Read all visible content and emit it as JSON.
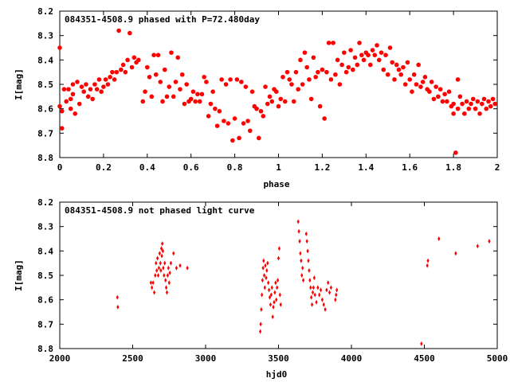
{
  "chart_data": [
    {
      "type": "scatter",
      "title": "084351-4508.9 phased with P=72.480day",
      "xlabel": "phase",
      "ylabel": "I[mag]",
      "xlim": [
        0,
        2
      ],
      "ylim": [
        8.8,
        8.2
      ],
      "y_inverted": true,
      "grid": false,
      "legend": "none",
      "x_ticks": [
        "0",
        "0.2",
        "0.4",
        "0.6",
        "0.8",
        "1",
        "1.2",
        "1.4",
        "1.6",
        "1.8",
        "2"
      ],
      "y_ticks": [
        "8.2",
        "8.3",
        "8.4",
        "8.5",
        "8.6",
        "8.7",
        "8.8"
      ],
      "marker": "filled-circle",
      "color": "#ff0000",
      "points": [
        [
          0.0,
          8.35
        ],
        [
          0.0,
          8.59
        ],
        [
          0.01,
          8.68
        ],
        [
          0.01,
          8.61
        ],
        [
          0.02,
          8.52
        ],
        [
          0.03,
          8.57
        ],
        [
          0.04,
          8.52
        ],
        [
          0.05,
          8.56
        ],
        [
          0.05,
          8.6
        ],
        [
          0.06,
          8.5
        ],
        [
          0.06,
          8.54
        ],
        [
          0.07,
          8.62
        ],
        [
          0.08,
          8.49
        ],
        [
          0.09,
          8.58
        ],
        [
          0.1,
          8.51
        ],
        [
          0.11,
          8.53
        ],
        [
          0.12,
          8.5
        ],
        [
          0.13,
          8.55
        ],
        [
          0.14,
          8.52
        ],
        [
          0.15,
          8.56
        ],
        [
          0.16,
          8.5
        ],
        [
          0.17,
          8.52
        ],
        [
          0.18,
          8.48
        ],
        [
          0.19,
          8.53
        ],
        [
          0.2,
          8.51
        ],
        [
          0.21,
          8.48
        ],
        [
          0.22,
          8.5
        ],
        [
          0.23,
          8.47
        ],
        [
          0.24,
          8.45
        ],
        [
          0.25,
          8.48
        ],
        [
          0.26,
          8.45
        ],
        [
          0.27,
          8.28
        ],
        [
          0.28,
          8.44
        ],
        [
          0.29,
          8.42
        ],
        [
          0.3,
          8.45
        ],
        [
          0.31,
          8.4
        ],
        [
          0.32,
          8.29
        ],
        [
          0.33,
          8.43
        ],
        [
          0.34,
          8.39
        ],
        [
          0.35,
          8.41
        ],
        [
          0.36,
          8.4
        ],
        [
          0.38,
          8.57
        ],
        [
          0.39,
          8.53
        ],
        [
          0.4,
          8.43
        ],
        [
          0.41,
          8.47
        ],
        [
          0.42,
          8.55
        ],
        [
          0.43,
          8.38
        ],
        [
          0.44,
          8.46
        ],
        [
          0.45,
          8.38
        ],
        [
          0.46,
          8.49
        ],
        [
          0.47,
          8.57
        ],
        [
          0.48,
          8.44
        ],
        [
          0.49,
          8.55
        ],
        [
          0.5,
          8.51
        ],
        [
          0.51,
          8.37
        ],
        [
          0.52,
          8.55
        ],
        [
          0.53,
          8.49
        ],
        [
          0.54,
          8.39
        ],
        [
          0.55,
          8.52
        ],
        [
          0.56,
          8.46
        ],
        [
          0.57,
          8.58
        ],
        [
          0.58,
          8.5
        ],
        [
          0.59,
          8.57
        ],
        [
          0.6,
          8.56
        ],
        [
          0.61,
          8.53
        ],
        [
          0.62,
          8.57
        ],
        [
          0.63,
          8.54
        ],
        [
          0.64,
          8.57
        ],
        [
          0.65,
          8.54
        ],
        [
          0.66,
          8.47
        ],
        [
          0.67,
          8.49
        ],
        [
          0.68,
          8.63
        ],
        [
          0.69,
          8.58
        ],
        [
          0.7,
          8.53
        ],
        [
          0.71,
          8.6
        ],
        [
          0.72,
          8.67
        ],
        [
          0.73,
          8.61
        ],
        [
          0.74,
          8.48
        ],
        [
          0.75,
          8.65
        ],
        [
          0.76,
          8.5
        ],
        [
          0.77,
          8.66
        ],
        [
          0.78,
          8.48
        ],
        [
          0.79,
          8.73
        ],
        [
          0.8,
          8.64
        ],
        [
          0.81,
          8.48
        ],
        [
          0.82,
          8.72
        ],
        [
          0.83,
          8.49
        ],
        [
          0.84,
          8.66
        ],
        [
          0.85,
          8.51
        ],
        [
          0.86,
          8.65
        ],
        [
          0.87,
          8.69
        ],
        [
          0.88,
          8.53
        ],
        [
          0.89,
          8.59
        ],
        [
          0.9,
          8.6
        ],
        [
          0.91,
          8.72
        ],
        [
          0.92,
          8.61
        ],
        [
          0.93,
          8.63
        ],
        [
          0.94,
          8.51
        ],
        [
          0.95,
          8.58
        ],
        [
          0.96,
          8.55
        ],
        [
          0.97,
          8.57
        ],
        [
          0.98,
          8.52
        ],
        [
          0.99,
          8.53
        ],
        [
          1.0,
          8.59
        ],
        [
          1.01,
          8.56
        ],
        [
          1.02,
          8.47
        ],
        [
          1.03,
          8.57
        ],
        [
          1.04,
          8.45
        ],
        [
          1.05,
          8.48
        ],
        [
          1.06,
          8.5
        ],
        [
          1.07,
          8.57
        ],
        [
          1.08,
          8.45
        ],
        [
          1.09,
          8.52
        ],
        [
          1.1,
          8.4
        ],
        [
          1.11,
          8.5
        ],
        [
          1.12,
          8.37
        ],
        [
          1.13,
          8.43
        ],
        [
          1.14,
          8.48
        ],
        [
          1.15,
          8.56
        ],
        [
          1.16,
          8.39
        ],
        [
          1.17,
          8.47
        ],
        [
          1.18,
          8.45
        ],
        [
          1.19,
          8.59
        ],
        [
          1.2,
          8.44
        ],
        [
          1.21,
          8.64
        ],
        [
          1.22,
          8.45
        ],
        [
          1.23,
          8.33
        ],
        [
          1.24,
          8.48
        ],
        [
          1.25,
          8.33
        ],
        [
          1.26,
          8.46
        ],
        [
          1.27,
          8.4
        ],
        [
          1.28,
          8.5
        ],
        [
          1.29,
          8.42
        ],
        [
          1.3,
          8.37
        ],
        [
          1.31,
          8.45
        ],
        [
          1.32,
          8.43
        ],
        [
          1.33,
          8.36
        ],
        [
          1.34,
          8.44
        ],
        [
          1.35,
          8.39
        ],
        [
          1.36,
          8.42
        ],
        [
          1.37,
          8.33
        ],
        [
          1.38,
          8.38
        ],
        [
          1.39,
          8.4
        ],
        [
          1.4,
          8.37
        ],
        [
          1.41,
          8.38
        ],
        [
          1.42,
          8.42
        ],
        [
          1.43,
          8.36
        ],
        [
          1.44,
          8.38
        ],
        [
          1.45,
          8.34
        ],
        [
          1.46,
          8.4
        ],
        [
          1.47,
          8.37
        ],
        [
          1.48,
          8.44
        ],
        [
          1.49,
          8.38
        ],
        [
          1.5,
          8.46
        ],
        [
          1.51,
          8.35
        ],
        [
          1.52,
          8.41
        ],
        [
          1.53,
          8.48
        ],
        [
          1.54,
          8.42
        ],
        [
          1.55,
          8.44
        ],
        [
          1.56,
          8.46
        ],
        [
          1.57,
          8.43
        ],
        [
          1.58,
          8.5
        ],
        [
          1.59,
          8.41
        ],
        [
          1.6,
          8.48
        ],
        [
          1.61,
          8.53
        ],
        [
          1.62,
          8.46
        ],
        [
          1.63,
          8.5
        ],
        [
          1.64,
          8.42
        ],
        [
          1.65,
          8.51
        ],
        [
          1.66,
          8.49
        ],
        [
          1.67,
          8.47
        ],
        [
          1.68,
          8.52
        ],
        [
          1.69,
          8.53
        ],
        [
          1.7,
          8.49
        ],
        [
          1.71,
          8.56
        ],
        [
          1.72,
          8.51
        ],
        [
          1.73,
          8.55
        ],
        [
          1.74,
          8.52
        ],
        [
          1.75,
          8.57
        ],
        [
          1.76,
          8.54
        ],
        [
          1.77,
          8.57
        ],
        [
          1.78,
          8.53
        ],
        [
          1.79,
          8.59
        ],
        [
          1.8,
          8.58
        ],
        [
          1.8,
          8.62
        ],
        [
          1.81,
          8.78
        ],
        [
          1.82,
          8.48
        ],
        [
          1.82,
          8.6
        ],
        [
          1.83,
          8.55
        ],
        [
          1.84,
          8.58
        ],
        [
          1.85,
          8.62
        ],
        [
          1.86,
          8.57
        ],
        [
          1.87,
          8.6
        ],
        [
          1.88,
          8.58
        ],
        [
          1.89,
          8.56
        ],
        [
          1.9,
          8.6
        ],
        [
          1.91,
          8.57
        ],
        [
          1.92,
          8.62
        ],
        [
          1.93,
          8.58
        ],
        [
          1.94,
          8.56
        ],
        [
          1.95,
          8.6
        ],
        [
          1.96,
          8.57
        ],
        [
          1.97,
          8.59
        ],
        [
          1.98,
          8.56
        ],
        [
          1.99,
          8.58
        ]
      ]
    },
    {
      "type": "scatter",
      "title": "084351-4508.9 not phased light curve",
      "xlabel": "hjd0",
      "ylabel": "I[mag]",
      "xlim": [
        2000,
        5000
      ],
      "ylim": [
        8.8,
        8.2
      ],
      "y_inverted": true,
      "grid": false,
      "legend": "none",
      "x_ticks": [
        "2000",
        "2500",
        "3000",
        "3500",
        "4000",
        "4500",
        "5000"
      ],
      "y_ticks": [
        "8.2",
        "8.3",
        "8.4",
        "8.5",
        "8.6",
        "8.7",
        "8.8"
      ],
      "marker": "small-diamond",
      "color": "#ff0000",
      "points": [
        [
          2395,
          8.59
        ],
        [
          2398,
          8.63
        ],
        [
          2625,
          8.53
        ],
        [
          2632,
          8.55
        ],
        [
          2640,
          8.53
        ],
        [
          2648,
          8.57
        ],
        [
          2655,
          8.5
        ],
        [
          2660,
          8.45
        ],
        [
          2665,
          8.48
        ],
        [
          2670,
          8.43
        ],
        [
          2675,
          8.5
        ],
        [
          2680,
          8.47
        ],
        [
          2685,
          8.41
        ],
        [
          2690,
          8.45
        ],
        [
          2693,
          8.48
        ],
        [
          2697,
          8.39
        ],
        [
          2700,
          8.42
        ],
        [
          2703,
          8.37
        ],
        [
          2707,
          8.4
        ],
        [
          2710,
          8.47
        ],
        [
          2715,
          8.5
        ],
        [
          2720,
          8.45
        ],
        [
          2725,
          8.52
        ],
        [
          2730,
          8.55
        ],
        [
          2735,
          8.57
        ],
        [
          2740,
          8.5
        ],
        [
          2745,
          8.47
        ],
        [
          2750,
          8.53
        ],
        [
          2755,
          8.49
        ],
        [
          2762,
          8.45
        ],
        [
          2780,
          8.41
        ],
        [
          2800,
          8.47
        ],
        [
          2825,
          8.46
        ],
        [
          2875,
          8.47
        ],
        [
          3375,
          8.73
        ],
        [
          3378,
          8.7
        ],
        [
          3382,
          8.64
        ],
        [
          3386,
          8.58
        ],
        [
          3390,
          8.52
        ],
        [
          3394,
          8.47
        ],
        [
          3398,
          8.44
        ],
        [
          3402,
          8.5
        ],
        [
          3406,
          8.55
        ],
        [
          3410,
          8.46
        ],
        [
          3415,
          8.51
        ],
        [
          3420,
          8.48
        ],
        [
          3425,
          8.45
        ],
        [
          3430,
          8.53
        ],
        [
          3435,
          8.56
        ],
        [
          3440,
          8.59
        ],
        [
          3445,
          8.62
        ],
        [
          3450,
          8.58
        ],
        [
          3455,
          8.55
        ],
        [
          3460,
          8.67
        ],
        [
          3465,
          8.63
        ],
        [
          3470,
          8.61
        ],
        [
          3475,
          8.57
        ],
        [
          3480,
          8.53
        ],
        [
          3485,
          8.6
        ],
        [
          3490,
          8.55
        ],
        [
          3495,
          8.52
        ],
        [
          3500,
          8.43
        ],
        [
          3505,
          8.39
        ],
        [
          3510,
          8.58
        ],
        [
          3515,
          8.62
        ],
        [
          3635,
          8.28
        ],
        [
          3640,
          8.32
        ],
        [
          3645,
          8.36
        ],
        [
          3650,
          8.41
        ],
        [
          3655,
          8.44
        ],
        [
          3660,
          8.5
        ],
        [
          3665,
          8.47
        ],
        [
          3670,
          8.52
        ],
        [
          3690,
          8.33
        ],
        [
          3695,
          8.36
        ],
        [
          3700,
          8.4
        ],
        [
          3705,
          8.44
        ],
        [
          3710,
          8.48
        ],
        [
          3715,
          8.52
        ],
        [
          3720,
          8.55
        ],
        [
          3725,
          8.59
        ],
        [
          3730,
          8.62
        ],
        [
          3735,
          8.57
        ],
        [
          3740,
          8.55
        ],
        [
          3745,
          8.51
        ],
        [
          3750,
          8.58
        ],
        [
          3760,
          8.61
        ],
        [
          3770,
          8.55
        ],
        [
          3780,
          8.58
        ],
        [
          3790,
          8.56
        ],
        [
          3800,
          8.6
        ],
        [
          3810,
          8.62
        ],
        [
          3820,
          8.64
        ],
        [
          3830,
          8.56
        ],
        [
          3840,
          8.53
        ],
        [
          3850,
          8.57
        ],
        [
          3860,
          8.55
        ],
        [
          3890,
          8.6
        ],
        [
          3895,
          8.58
        ],
        [
          3900,
          8.56
        ],
        [
          4480,
          8.78
        ],
        [
          4520,
          8.46
        ],
        [
          4525,
          8.44
        ],
        [
          4600,
          8.35
        ],
        [
          4715,
          8.41
        ],
        [
          4865,
          8.38
        ],
        [
          4945,
          8.36
        ]
      ]
    }
  ]
}
